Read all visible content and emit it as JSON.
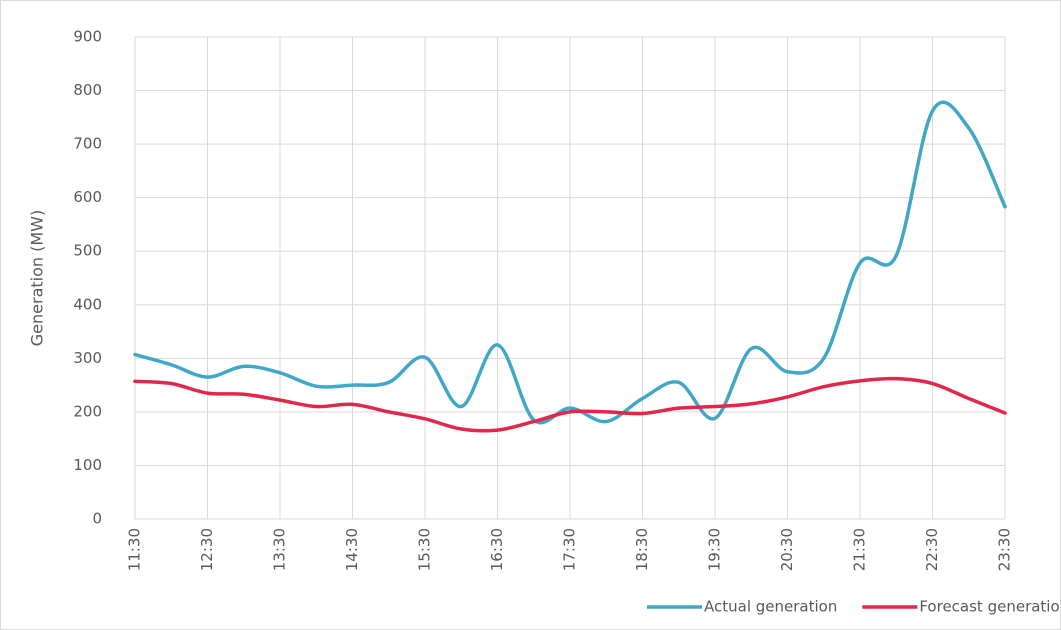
{
  "chart_data": {
    "type": "line",
    "y_label": "Generation (MW)",
    "categories": [
      "11:30",
      null,
      "12:30",
      null,
      "13:30",
      null,
      "14:30",
      null,
      "15:30",
      null,
      "16:30",
      null,
      "17:30",
      null,
      "18:30",
      null,
      "19:30",
      null,
      "20:30",
      null,
      "21:30",
      null,
      "22:30",
      null,
      "23:30"
    ],
    "series": [
      {
        "name": "Actual generation",
        "color": "#41a7c9",
        "values": [
          307,
          288,
          265,
          285,
          273,
          248,
          250,
          255,
          302,
          210,
          325,
          185,
          207,
          182,
          225,
          255,
          188,
          318,
          275,
          300,
          478,
          492,
          762,
          730,
          583
        ]
      },
      {
        "name": "Forecast generation*",
        "color": "#e0294a",
        "values": [
          257,
          253,
          235,
          233,
          222,
          210,
          214,
          200,
          187,
          168,
          166,
          182,
          200,
          200,
          197,
          207,
          210,
          215,
          228,
          247,
          258,
          262,
          253,
          225,
          198
        ]
      }
    ],
    "ylim": [
      0,
      900
    ],
    "yticks": [
      0,
      100,
      200,
      300,
      400,
      500,
      600,
      700,
      800,
      900
    ],
    "grid": true,
    "legend": "bottom",
    "smooth": true
  }
}
